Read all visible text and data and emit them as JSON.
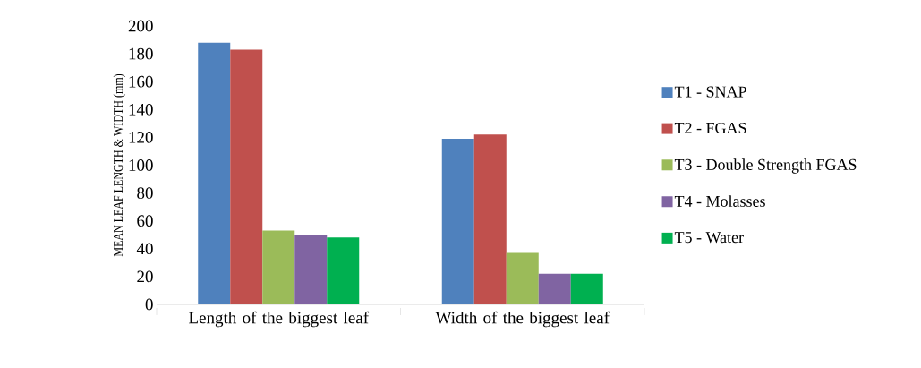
{
  "chart_data": {
    "type": "bar",
    "ylabel": "MEAN LEAF LENGTH & WIDTH (mm)",
    "categories": [
      "Length of the biggest leaf",
      "Width of the biggest leaf"
    ],
    "series": [
      {
        "name": "T1 - SNAP",
        "color": "#4f81bd",
        "values": [
          188,
          119
        ]
      },
      {
        "name": "T2 - FGAS",
        "color": "#c0504d",
        "values": [
          183,
          122
        ]
      },
      {
        "name": "T3 - Double Strength FGAS",
        "color": "#9bbb59",
        "values": [
          53,
          37
        ]
      },
      {
        "name": "T4 - Molasses",
        "color": "#8064a2",
        "values": [
          50,
          22
        ]
      },
      {
        "name": "T5 - Water",
        "color": "#00b050",
        "values": [
          48,
          22
        ]
      }
    ],
    "ylim": [
      0,
      200
    ],
    "yticks": [
      0,
      20,
      40,
      60,
      80,
      100,
      120,
      140,
      160,
      180,
      200
    ],
    "legend": "right"
  }
}
